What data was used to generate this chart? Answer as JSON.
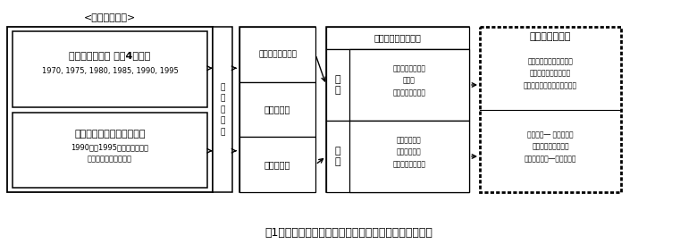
{
  "title": "図1　開発した地域農業構造分析・予測システムの概要",
  "bg_color": "#ffffff",
  "label_top": "<提供原データ>",
  "box1_line1": "農業集落カード 全国4万集落",
  "box1_line2": "1970, 1975, 1980, 1985, 1990, 1995",
  "box2_line1": "農林業センサス個票データ",
  "box2_line2": "1990年と1995年の全国全農家",
  "box2_line3": "（総務省の使用許可）",
  "vert_label": "統\n計\n情\n報\n部",
  "pc_label": "パソコン上で利用",
  "cluster_data_label": "集落データ",
  "farmer_data_label": "農家データ",
  "analysis_header": "分析システムの開発",
  "cluster_kanji": "集\n落",
  "farmer_kanji": "農\n家",
  "c_anal1": "集落農業持続可能",
  "c_anal2": "性分析",
  "c_anal3": "集落構造変動予測",
  "f_anal1": "詳細実態解析",
  "f_anal2": "農家類型予測",
  "f_anal3": "農家構造変動予測",
  "result_header": "研究成果の普及",
  "r1_1": "分析情報と分析システム",
  "r1_2": "総計情報部　地域農式",
  "r1_3": "公立研究機関と普及センター",
  "r2_1": "分析情報― 総計情報部",
  "r2_2": "地域農式　関連学会",
  "r2_3": "分析システム―総計情報部"
}
